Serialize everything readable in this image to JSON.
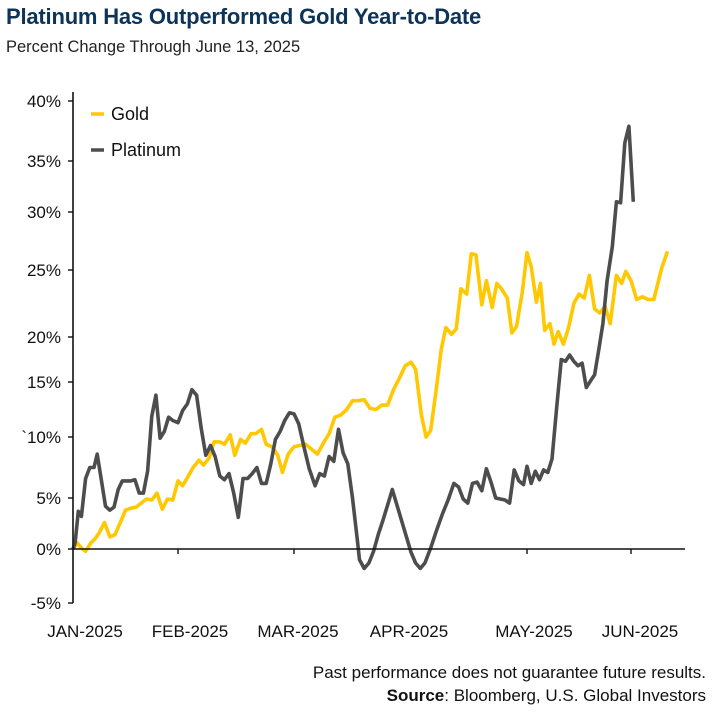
{
  "header": {
    "title": "Platinum Has Outperformed Gold Year-to-Date",
    "subtitle": "Percent Change Through June 13, 2025"
  },
  "footer": {
    "disclaimer": "Past performance does not guarantee future results.",
    "source_label": "Source",
    "source_text": ": Bloomberg, U.S. Global Investors"
  },
  "colors": {
    "gold": "#FFC800",
    "platinum": "#4D4D4D",
    "axis": "#111111",
    "title": "#0D3457"
  },
  "chart_data": {
    "type": "line",
    "title": "Platinum Has Outperformed Gold Year-to-Date",
    "subtitle": "Percent Change Through June 13, 2025",
    "xlabel": "",
    "ylabel": "",
    "x_unit": "months since Jan 1, 2025 (0=Jan, 1=Feb, ...)",
    "xlim": [
      0,
      5.45
    ],
    "ylim": [
      -5,
      40
    ],
    "grid": false,
    "legend_position": "top-left",
    "x_ticks": [
      {
        "value": 0,
        "label": "JAN-2025"
      },
      {
        "value": 1,
        "label": "FEB-2025"
      },
      {
        "value": 2,
        "label": "MAR-2025"
      },
      {
        "value": 3,
        "label": "APR-2025"
      },
      {
        "value": 4,
        "label": "MAY-2025"
      },
      {
        "value": 5,
        "label": "JUN-2025"
      }
    ],
    "y_ticks": [
      {
        "value": 40,
        "label": "40%"
      },
      {
        "value": 35,
        "label": "35%"
      },
      {
        "value": 30,
        "label": "30%"
      },
      {
        "value": 25,
        "label": "25%"
      },
      {
        "value": 20,
        "label": "20%"
      },
      {
        "value": 15,
        "label": "15%"
      },
      {
        "value": 10,
        "label": "`10%"
      },
      {
        "value": 5,
        "label": "5%"
      },
      {
        "value": 0,
        "label": "0%"
      },
      {
        "value": -5,
        "label": "-5%"
      }
    ],
    "series": [
      {
        "name": "Gold",
        "color": "#FFC800",
        "points": [
          [
            0.0,
            0.0
          ],
          [
            0.04,
            0.6
          ],
          [
            0.08,
            0.1
          ],
          [
            0.12,
            -0.2
          ],
          [
            0.17,
            0.6
          ],
          [
            0.21,
            1.0
          ],
          [
            0.25,
            1.6
          ],
          [
            0.3,
            2.6
          ],
          [
            0.35,
            1.2
          ],
          [
            0.4,
            1.4
          ],
          [
            0.45,
            2.6
          ],
          [
            0.5,
            3.8
          ],
          [
            0.55,
            4.0
          ],
          [
            0.6,
            4.1
          ],
          [
            0.65,
            4.5
          ],
          [
            0.7,
            4.9
          ],
          [
            0.75,
            4.8
          ],
          [
            0.8,
            5.4
          ],
          [
            0.85,
            3.9
          ],
          [
            0.9,
            4.9
          ],
          [
            0.95,
            4.8
          ],
          [
            1.0,
            6.4
          ],
          [
            1.04,
            6.0
          ],
          [
            1.09,
            6.8
          ],
          [
            1.13,
            7.5
          ],
          [
            1.18,
            8.1
          ],
          [
            1.22,
            7.7
          ],
          [
            1.27,
            8.3
          ],
          [
            1.31,
            9.6
          ],
          [
            1.36,
            9.6
          ],
          [
            1.4,
            9.4
          ],
          [
            1.45,
            10.2
          ],
          [
            1.49,
            8.5
          ],
          [
            1.54,
            9.8
          ],
          [
            1.58,
            9.5
          ],
          [
            1.63,
            10.3
          ],
          [
            1.67,
            10.3
          ],
          [
            1.72,
            10.7
          ],
          [
            1.76,
            9.4
          ],
          [
            1.81,
            9.2
          ],
          [
            1.86,
            8.5
          ],
          [
            1.9,
            7.1
          ],
          [
            1.95,
            8.6
          ],
          [
            2.0,
            9.2
          ],
          [
            2.05,
            9.3
          ],
          [
            2.1,
            9.4
          ],
          [
            2.15,
            9.0
          ],
          [
            2.2,
            8.6
          ],
          [
            2.25,
            9.5
          ],
          [
            2.3,
            10.3
          ],
          [
            2.35,
            11.8
          ],
          [
            2.4,
            12.0
          ],
          [
            2.45,
            12.5
          ],
          [
            2.5,
            13.3
          ],
          [
            2.55,
            13.3
          ],
          [
            2.6,
            13.4
          ],
          [
            2.65,
            12.6
          ],
          [
            2.7,
            12.5
          ],
          [
            2.75,
            12.9
          ],
          [
            2.8,
            12.9
          ],
          [
            2.85,
            14.3
          ],
          [
            2.9,
            15.4
          ],
          [
            2.95,
            16.8
          ],
          [
            3.0,
            17.2
          ],
          [
            3.04,
            16.4
          ],
          [
            3.09,
            12.0
          ],
          [
            3.13,
            10.0
          ],
          [
            3.17,
            10.6
          ],
          [
            3.22,
            14.5
          ],
          [
            3.26,
            18.6
          ],
          [
            3.3,
            20.7
          ],
          [
            3.35,
            20.2
          ],
          [
            3.39,
            20.6
          ],
          [
            3.43,
            23.6
          ],
          [
            3.48,
            23.2
          ],
          [
            3.52,
            26.4
          ],
          [
            3.56,
            26.3
          ],
          [
            3.61,
            22.4
          ],
          [
            3.65,
            24.2
          ],
          [
            3.7,
            22.2
          ],
          [
            3.74,
            24.0
          ],
          [
            3.78,
            23.6
          ],
          [
            3.83,
            22.9
          ],
          [
            3.87,
            20.3
          ],
          [
            3.91,
            20.8
          ],
          [
            3.96,
            23.4
          ],
          [
            4.0,
            26.5
          ],
          [
            4.04,
            25.3
          ],
          [
            4.09,
            22.6
          ],
          [
            4.13,
            24.0
          ],
          [
            4.17,
            20.5
          ],
          [
            4.22,
            21.0
          ],
          [
            4.26,
            19.2
          ],
          [
            4.3,
            20.4
          ],
          [
            4.35,
            19.2
          ],
          [
            4.4,
            20.7
          ],
          [
            4.45,
            22.5
          ],
          [
            4.5,
            23.2
          ],
          [
            4.55,
            22.9
          ],
          [
            4.6,
            24.6
          ],
          [
            4.65,
            22.1
          ],
          [
            4.7,
            21.8
          ],
          [
            4.75,
            22.3
          ],
          [
            4.8,
            21.0
          ],
          [
            4.86,
            24.6
          ],
          [
            4.91,
            24.0
          ],
          [
            4.95,
            24.9
          ],
          [
            5.0,
            24.2
          ],
          [
            5.05,
            22.8
          ],
          [
            5.1,
            23.0
          ],
          [
            5.15,
            22.8
          ],
          [
            5.2,
            22.8
          ],
          [
            5.27,
            25.2
          ],
          [
            5.32,
            26.6
          ]
        ]
      },
      {
        "name": "Platinum",
        "color": "#4D4D4D",
        "points": [
          [
            0.0,
            0.0
          ],
          [
            0.02,
            0.6
          ],
          [
            0.05,
            3.7
          ],
          [
            0.08,
            3.2
          ],
          [
            0.12,
            6.6
          ],
          [
            0.16,
            7.5
          ],
          [
            0.2,
            7.5
          ],
          [
            0.23,
            8.6
          ],
          [
            0.27,
            6.5
          ],
          [
            0.31,
            4.2
          ],
          [
            0.35,
            3.8
          ],
          [
            0.39,
            4.1
          ],
          [
            0.43,
            5.7
          ],
          [
            0.47,
            6.4
          ],
          [
            0.51,
            6.4
          ],
          [
            0.55,
            6.4
          ],
          [
            0.59,
            6.5
          ],
          [
            0.63,
            5.4
          ],
          [
            0.67,
            5.4
          ],
          [
            0.71,
            7.2
          ],
          [
            0.75,
            11.9
          ],
          [
            0.79,
            13.8
          ],
          [
            0.83,
            9.9
          ],
          [
            0.87,
            10.5
          ],
          [
            0.91,
            11.8
          ],
          [
            0.95,
            11.5
          ],
          [
            1.0,
            11.3
          ],
          [
            1.04,
            12.4
          ],
          [
            1.08,
            13.0
          ],
          [
            1.12,
            14.3
          ],
          [
            1.16,
            13.8
          ],
          [
            1.2,
            10.8
          ],
          [
            1.24,
            8.5
          ],
          [
            1.28,
            9.3
          ],
          [
            1.32,
            8.4
          ],
          [
            1.36,
            6.8
          ],
          [
            1.4,
            6.5
          ],
          [
            1.44,
            7.0
          ],
          [
            1.48,
            5.4
          ],
          [
            1.52,
            3.1
          ],
          [
            1.56,
            6.6
          ],
          [
            1.6,
            6.6
          ],
          [
            1.64,
            7.0
          ],
          [
            1.68,
            7.5
          ],
          [
            1.72,
            6.2
          ],
          [
            1.76,
            6.2
          ],
          [
            1.8,
            7.8
          ],
          [
            1.84,
            9.8
          ],
          [
            1.88,
            10.5
          ],
          [
            1.92,
            11.5
          ],
          [
            1.96,
            12.2
          ],
          [
            2.0,
            12.1
          ],
          [
            2.04,
            11.2
          ],
          [
            2.09,
            9.0
          ],
          [
            2.13,
            7.4
          ],
          [
            2.18,
            6.0
          ],
          [
            2.22,
            7.0
          ],
          [
            2.26,
            6.8
          ],
          [
            2.3,
            8.4
          ],
          [
            2.34,
            8.0
          ],
          [
            2.38,
            10.7
          ],
          [
            2.42,
            8.7
          ],
          [
            2.46,
            7.8
          ],
          [
            2.5,
            5.0
          ],
          [
            2.54,
            1.0
          ],
          [
            2.56,
            -1.0
          ],
          [
            2.6,
            -1.8
          ],
          [
            2.64,
            -1.3
          ],
          [
            2.68,
            -0.2
          ],
          [
            2.72,
            1.4
          ],
          [
            2.76,
            2.8
          ],
          [
            2.8,
            4.3
          ],
          [
            2.84,
            5.7
          ],
          [
            3.0,
            -0.3
          ],
          [
            3.04,
            -1.3
          ],
          [
            3.08,
            -1.8
          ],
          [
            3.12,
            -1.3
          ],
          [
            3.17,
            0.1
          ],
          [
            3.22,
            1.8
          ],
          [
            3.27,
            3.4
          ],
          [
            3.32,
            4.8
          ],
          [
            3.37,
            6.2
          ],
          [
            3.41,
            5.9
          ],
          [
            3.45,
            4.9
          ],
          [
            3.49,
            4.5
          ],
          [
            3.53,
            6.2
          ],
          [
            3.57,
            6.3
          ],
          [
            3.61,
            5.6
          ],
          [
            3.65,
            7.4
          ],
          [
            3.69,
            6.3
          ],
          [
            3.73,
            5.0
          ],
          [
            3.77,
            4.9
          ],
          [
            3.81,
            4.8
          ],
          [
            3.85,
            4.5
          ],
          [
            3.89,
            7.3
          ],
          [
            3.93,
            6.4
          ],
          [
            3.97,
            6.1
          ],
          [
            4.0,
            7.6
          ],
          [
            4.04,
            6.2
          ],
          [
            4.08,
            7.2
          ],
          [
            4.12,
            6.5
          ],
          [
            4.16,
            7.3
          ],
          [
            4.2,
            7.1
          ],
          [
            4.24,
            8.2
          ],
          [
            4.29,
            13.2
          ],
          [
            4.33,
            17.5
          ],
          [
            4.37,
            17.3
          ],
          [
            4.41,
            18.0
          ],
          [
            4.45,
            17.3
          ],
          [
            4.49,
            16.8
          ],
          [
            4.53,
            17.1
          ],
          [
            4.57,
            14.5
          ],
          [
            4.61,
            15.1
          ],
          [
            4.65,
            15.8
          ],
          [
            4.69,
            18.6
          ],
          [
            4.73,
            21.0
          ],
          [
            4.77,
            24.2
          ],
          [
            4.82,
            27.0
          ],
          [
            4.86,
            31.0
          ],
          [
            4.9,
            30.9
          ],
          [
            4.94,
            36.5
          ],
          [
            4.98,
            37.9
          ],
          [
            5.02,
            31.0
          ]
        ]
      }
    ]
  }
}
